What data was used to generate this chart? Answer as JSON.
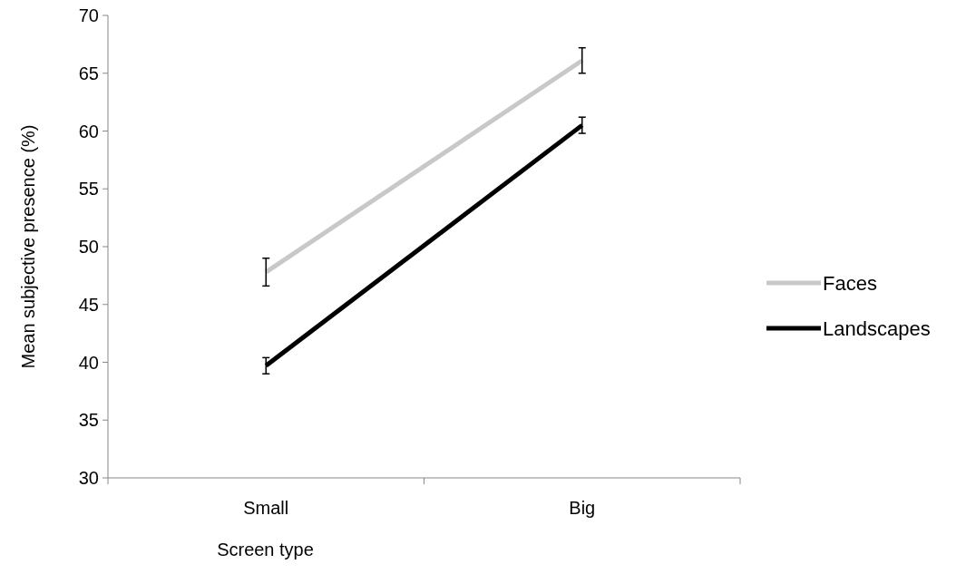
{
  "chart_data": {
    "type": "line",
    "xlabel": "Screen type",
    "ylabel": "Mean subjective presence (%)",
    "categories": [
      "Small",
      "Big"
    ],
    "series": [
      {
        "name": "Faces",
        "color": "#c8c8c8",
        "values": [
          47.8,
          66.1
        ],
        "errors": [
          1.2,
          1.1
        ]
      },
      {
        "name": "Landscapes",
        "color": "#000000",
        "values": [
          39.7,
          60.5
        ],
        "errors": [
          0.7,
          0.7
        ]
      }
    ],
    "ylim": [
      30,
      70
    ],
    "yticks": [
      30,
      35,
      40,
      45,
      50,
      55,
      60,
      65,
      70
    ],
    "grid": false,
    "legend": "right",
    "marker": "none",
    "line_style": "solid"
  }
}
